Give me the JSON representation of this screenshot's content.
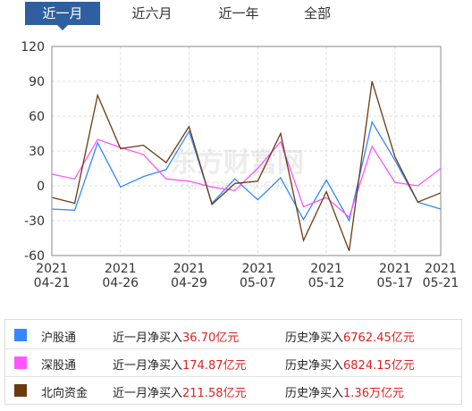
{
  "tabs": [
    {
      "label": "近一月",
      "active": true
    },
    {
      "label": "近六月",
      "active": false
    },
    {
      "label": "近一年",
      "active": false
    },
    {
      "label": "全部",
      "active": false
    }
  ],
  "watermark": {
    "brand": "东方财富网",
    "domain": "eastmoney.com"
  },
  "chart_data": {
    "type": "line",
    "ylim": [
      -60,
      120
    ],
    "y_ticks": [
      "120",
      "90",
      "60",
      "30",
      "0",
      "-30",
      "-60"
    ],
    "x_ticks": [
      {
        "year": "2021",
        "date": "04-21",
        "index": 0
      },
      {
        "year": "2021",
        "date": "04-26",
        "index": 3
      },
      {
        "year": "2021",
        "date": "04-29",
        "index": 6
      },
      {
        "year": "2021",
        "date": "05-07",
        "index": 9
      },
      {
        "year": "2021",
        "date": "05-12",
        "index": 12
      },
      {
        "year": "2021",
        "date": "05-17",
        "index": 15
      },
      {
        "year": "2021",
        "date": "05-21",
        "index": 17
      }
    ],
    "grid": true,
    "series": [
      {
        "name": "沪股通",
        "color": "#3388ff",
        "values": [
          -20,
          -21,
          37,
          -1,
          8,
          14,
          47,
          -15,
          6,
          -12,
          7,
          -29,
          5,
          -30,
          55,
          22,
          -14,
          -20
        ]
      },
      {
        "name": "深股通",
        "color": "#ff55ff",
        "values": [
          10,
          6,
          40,
          33,
          27,
          6,
          4,
          -1,
          -4,
          15,
          38,
          -18,
          -10,
          -27,
          34,
          3,
          0,
          15
        ]
      },
      {
        "name": "北向资金",
        "color": "#6b3a0f",
        "values": [
          -10,
          -15,
          78,
          32,
          35,
          20,
          51,
          -16,
          2,
          4,
          45,
          -47,
          -5,
          -56,
          90,
          25,
          -14,
          -6
        ]
      }
    ]
  },
  "legend": [
    {
      "name": "沪股通",
      "color": "#3388ff",
      "month_label": "近一月净买入",
      "month_value": "36.70亿元",
      "hist_label": "历史净买入",
      "hist_value": "6762.45亿元"
    },
    {
      "name": "深股通",
      "color": "#ff55ff",
      "month_label": "近一月净买入",
      "month_value": "174.87亿元",
      "hist_label": "历史净买入",
      "hist_value": "6824.15亿元"
    },
    {
      "name": "北向资金",
      "color": "#6b3a0f",
      "month_label": "近一月净买入",
      "month_value": "211.58亿元",
      "hist_label": "历史净买入",
      "hist_value": "1.36万亿元"
    }
  ]
}
